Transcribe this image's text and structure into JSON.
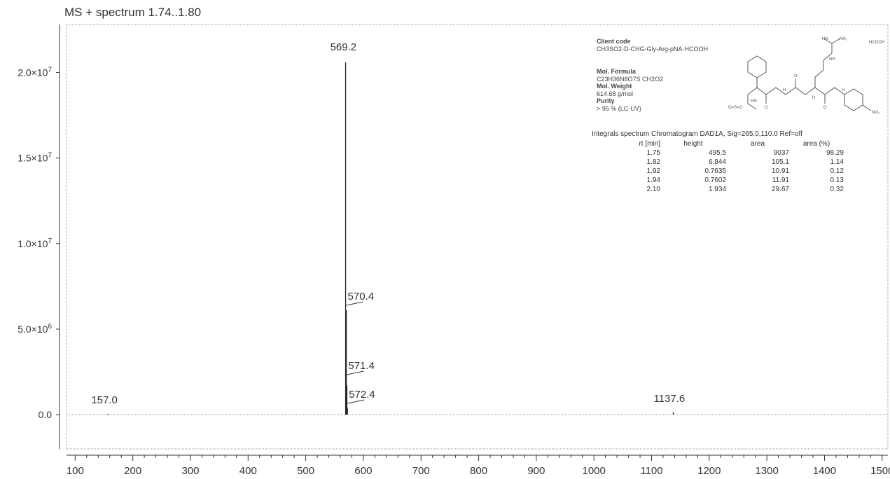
{
  "chart_data": {
    "type": "line",
    "title": "MS + spectrum 1.74..1.80",
    "xlabel": "",
    "ylabel": "",
    "xlim": [
      85,
      1510
    ],
    "ylim": [
      -2000000,
      22800000
    ],
    "x_ticks": [
      100,
      200,
      300,
      400,
      500,
      600,
      700,
      800,
      900,
      1000,
      1100,
      1200,
      1300,
      1400,
      1500
    ],
    "y_ticks": [
      {
        "value": 0,
        "label_main": "0.0",
        "label_exp": ""
      },
      {
        "value": 5000000,
        "label_main": "5.0×10",
        "label_exp": "6"
      },
      {
        "value": 10000000,
        "label_main": "1.0×10",
        "label_exp": "7"
      },
      {
        "value": 15000000,
        "label_main": "1.5×10",
        "label_exp": "7"
      },
      {
        "value": 20000000,
        "label_main": "2.0×10",
        "label_exp": "7"
      }
    ],
    "grid": false,
    "series": [
      {
        "peaks": [
          {
            "x": 157.0,
            "y": 50000
          },
          {
            "x": 569.2,
            "y": 20600000
          },
          {
            "x": 570.4,
            "y": 6100000
          },
          {
            "x": 571.4,
            "y": 1700000
          },
          {
            "x": 572.4,
            "y": 400000
          },
          {
            "x": 1137.6,
            "y": 150000
          }
        ]
      }
    ],
    "annotations": [
      {
        "label": "569.2",
        "x": 569.2
      },
      {
        "label": "570.4",
        "x": 570.4
      },
      {
        "label": "571.4",
        "x": 571.4
      },
      {
        "label": "572.4",
        "x": 572.4
      },
      {
        "label": "157.0",
        "x": 157.0
      },
      {
        "label": "1137.6",
        "x": 1137.6
      }
    ]
  },
  "compound": {
    "client_code_label": "Client code",
    "client_code": "CH3SO2-D-CHG-Gly-Arg-pNA·HCOOH",
    "formula_label": "Mol. Formula",
    "formula": "C23H36N8O7S CH2O2",
    "weight_label": "Mol. Weight",
    "weight": "614.68 g/mol",
    "purity_label": "Purity",
    "purity": "> 95 % (LC-UV)",
    "salt": "HCOOH",
    "structure_labels": {
      "hn": "HN",
      "nh2": "NH₂",
      "nh": "NH",
      "h": "H",
      "o": "O",
      "no2": "NO₂",
      "so2": "O=S=O"
    }
  },
  "integrals": {
    "heading": "Integrals spectrum Chromatogram DAD1A, Sig=265.0,110.0 Ref=off",
    "columns": [
      "rt [min]",
      "height",
      "area",
      "area (%)"
    ],
    "rows": [
      [
        "1.75",
        "495.5",
        "9037",
        "98.29"
      ],
      [
        "1.82",
        "6.844",
        "105.1",
        "1.14"
      ],
      [
        "1.92",
        "0.7635",
        "10.91",
        "0.12"
      ],
      [
        "1.94",
        "0.7602",
        "11.91",
        "0.13"
      ],
      [
        "2.10",
        "1.934",
        "29.67",
        "0.32"
      ]
    ]
  },
  "colors": {
    "axis": "#333333",
    "peak": "#222222",
    "frame": "#999999"
  }
}
